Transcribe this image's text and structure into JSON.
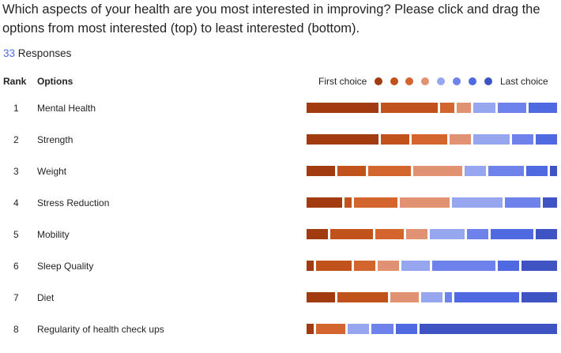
{
  "question": "Which aspects of your health are you most interested in improving? Please click and drag the options from most interested (top) to least interested (bottom).",
  "responses": {
    "count": "33",
    "label": "Responses"
  },
  "table": {
    "rank_header": "Rank",
    "options_header": "Options"
  },
  "legend": {
    "first_label": "First choice",
    "last_label": "Last choice",
    "colors": [
      "#a23b0f",
      "#c2521b",
      "#d4652e",
      "#e09272",
      "#96a7f0",
      "#6d83eb",
      "#4f6ae0",
      "#3d54c2"
    ]
  },
  "chart_data": {
    "type": "bar",
    "stacked": true,
    "categories": [
      "Mental Health",
      "Strength",
      "Weight",
      "Stress Reduction",
      "Mobility",
      "Sleep Quality",
      "Diet",
      "Regularity of health check ups"
    ],
    "ranks": [
      "1",
      "2",
      "3",
      "4",
      "5",
      "6",
      "7",
      "8"
    ],
    "series": [
      {
        "values": [
          10,
          10,
          4,
          5,
          3,
          1,
          4,
          1
        ]
      },
      {
        "values": [
          8,
          4,
          4,
          1,
          6,
          5,
          7,
          0
        ]
      },
      {
        "values": [
          2,
          5,
          6,
          6,
          4,
          3,
          0,
          4
        ]
      },
      {
        "values": [
          2,
          3,
          7,
          7,
          3,
          3,
          4,
          0
        ]
      },
      {
        "values": [
          3,
          5,
          3,
          7,
          5,
          4,
          3,
          3
        ]
      },
      {
        "values": [
          4,
          3,
          5,
          5,
          3,
          9,
          1,
          3
        ]
      },
      {
        "values": [
          4,
          3,
          3,
          0,
          6,
          3,
          9,
          3
        ]
      },
      {
        "values": [
          0,
          0,
          1,
          2,
          3,
          5,
          5,
          19
        ]
      }
    ]
  }
}
